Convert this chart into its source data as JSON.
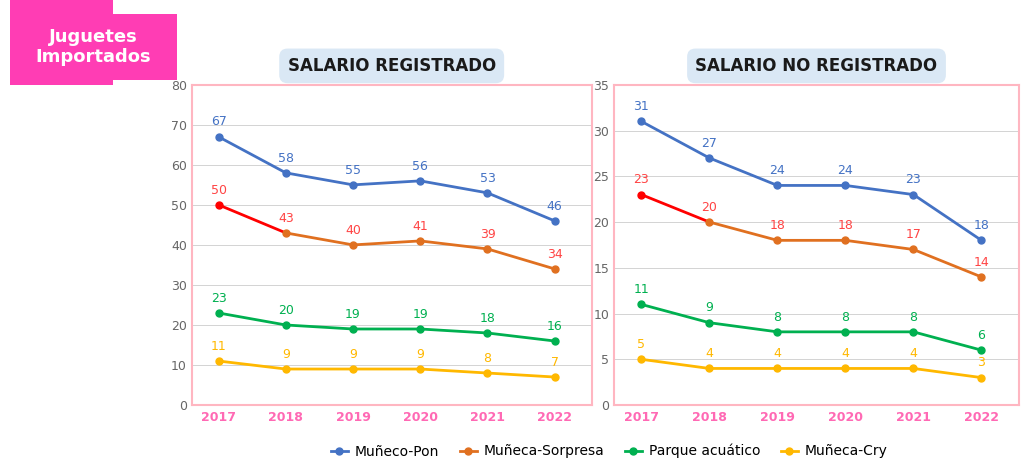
{
  "years": [
    2017,
    2018,
    2019,
    2020,
    2021,
    2022
  ],
  "registered": {
    "muneco_pon": [
      67,
      58,
      55,
      56,
      53,
      46
    ],
    "muneca_sorpresa": [
      50,
      43,
      40,
      41,
      39,
      34
    ],
    "parque_acuatico": [
      23,
      20,
      19,
      19,
      18,
      16
    ],
    "muneca_cry": [
      11,
      9,
      9,
      9,
      8,
      7
    ]
  },
  "no_registered": {
    "muneco_pon": [
      31,
      27,
      24,
      24,
      23,
      18
    ],
    "muneca_sorpresa": [
      23,
      20,
      18,
      18,
      17,
      14
    ],
    "parque_acuatico": [
      11,
      9,
      8,
      8,
      8,
      6
    ],
    "muneca_cry": [
      5,
      4,
      4,
      4,
      4,
      3
    ]
  },
  "colors": {
    "muneco_pon": "#4472C4",
    "muneca_sorpresa_seg0": "#FF0000",
    "muneca_sorpresa_seg1": "#E07020",
    "parque_acuatico": "#00B050",
    "muneca_cry": "#FFB800"
  },
  "reg_ylim": [
    0,
    80
  ],
  "noreg_ylim": [
    0,
    35
  ],
  "reg_yticks": [
    0,
    10,
    20,
    30,
    40,
    50,
    60,
    70,
    80
  ],
  "noreg_yticks": [
    0,
    5,
    10,
    15,
    20,
    25,
    30,
    35
  ],
  "title_reg": "SALARIO REGISTRADO",
  "title_noreg": "SALARIO NO REGISTRADO",
  "left_title": "Juguetes\nImportados",
  "legend_labels": [
    "Muñeco-Pon",
    "Muñeca-Sorpresa",
    "Parque acuático",
    "Muñeca-Cry"
  ],
  "series_keys": [
    "muneco_pon",
    "muneca_sorpresa",
    "parque_acuatico",
    "muneca_cry"
  ],
  "line_colors": [
    "#4472C4",
    "#E07020",
    "#00B050",
    "#FFB800"
  ],
  "label_colors": [
    "#4472C4",
    "#FF4444",
    "#00B050",
    "#FFB800"
  ],
  "xlabel_color": "#FF69B4",
  "border_color": "#FFB6C1",
  "title_bg": "#DAE8F5",
  "left_bg": "#FF3DB4",
  "fig_bg": "#FFFFFF",
  "plot_bg": "#FFFFFF",
  "grid_color": "#CCCCCC",
  "marker_size": 5,
  "line_width": 2.0,
  "font_size_label": 9,
  "font_size_title": 12,
  "font_size_axis": 9,
  "font_size_legend": 10,
  "font_size_left": 13
}
